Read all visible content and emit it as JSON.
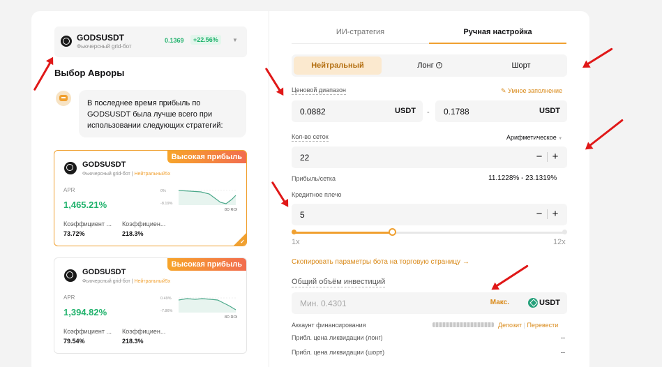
{
  "pair": {
    "name": "GODSUSDT",
    "subtitle": "Фьючерсный grid-бот",
    "price": "0.1369",
    "change": "+22.56%"
  },
  "section_title": "Выбор Авроры",
  "assistant_message": "В последнее время прибыль по GODSUSDT была лучше всего при использовании следующих стратегий:",
  "cards": [
    {
      "badge": "Высокая прибыль",
      "name": "GODSUSDT",
      "subtitle": "Фьючерсный grid-бот",
      "subtitle_tag": "Нейтральный5x",
      "apr_label": "APR",
      "apr": "1,465.21%",
      "spark_top": "0%",
      "spark_bottom": "-8.19%",
      "spark_label": "8D ROI",
      "coef1_label": "Коэффициент ...",
      "coef1": "73.72%",
      "coef2_label": "Коэффициен...",
      "coef2": "218.3%"
    },
    {
      "badge": "Высокая прибыль",
      "name": "GODSUSDT",
      "subtitle": "Фьючерсный grid-бот",
      "subtitle_tag": "Нейтральный5x",
      "apr_label": "APR",
      "apr": "1,394.82%",
      "spark_top": "0.49%",
      "spark_bottom": "-7.86%",
      "spark_label": "8D ROI",
      "coef1_label": "Коэффициент ...",
      "coef1": "79.54%",
      "coef2_label": "Коэффициен...",
      "coef2": "218.3%"
    }
  ],
  "tabs": {
    "ai": "ИИ-стратегия",
    "manual": "Ручная настройка"
  },
  "direction": {
    "neutral": "Нейтральный",
    "long": "Лонг",
    "short": "Шорт"
  },
  "price_range": {
    "label": "Ценовой диапазон",
    "autofill": "Умное заполнение",
    "low": "0.0882",
    "high": "0.1788",
    "unit": "USDT"
  },
  "grids": {
    "label": "Кол-во сеток",
    "mode": "Арифметическое",
    "value": "22",
    "profit_label": "Прибыль/сетка",
    "profit_value": "11.1228% - 23.1319%"
  },
  "leverage": {
    "label": "Кредитное плечо",
    "value": "5",
    "min": "1x",
    "max": "12x",
    "level": 0.36
  },
  "copy_link": "Скопировать параметры бота на торговую страницу →",
  "investment": {
    "label": "Общий объём инвестиций",
    "placeholder": "Мин. 0.4301",
    "max": "Макс.",
    "unit": "USDT"
  },
  "funding": {
    "label": "Аккаунт финансирования",
    "deposit": "Депозит",
    "transfer": "Перевести"
  },
  "liq_long": {
    "label": "Прибл. цена ликвидации (лонг)",
    "value": "--"
  },
  "liq_short": {
    "label": "Прибл. цена ликвидации (шорт)",
    "value": "--"
  },
  "colors": {
    "accent": "#f0a030",
    "positive": "#20b26c",
    "annotation": "#e01818"
  }
}
